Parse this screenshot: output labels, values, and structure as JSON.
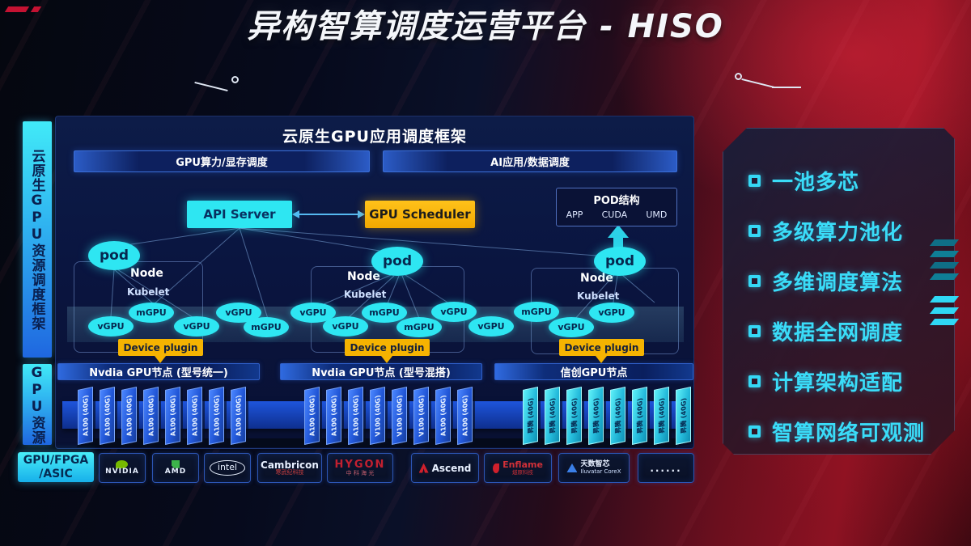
{
  "title": {
    "text": "异构智算调度运营平台 - HISO"
  },
  "sidebar": {
    "top_label": "云原生GPU资源调度框架",
    "bottom_label": "GPU资源"
  },
  "framework": {
    "title": "云原生GPU应用调度框架",
    "left_bar": "GPU算力/显存调度",
    "right_bar": "AI应用/数据调度"
  },
  "control": {
    "api_server": "API Server",
    "gpu_scheduler": "GPU Scheduler"
  },
  "pod_structure": {
    "title": "POD结构",
    "items": [
      "APP",
      "CUDA",
      "UMD"
    ]
  },
  "clusters": [
    {
      "pod": "pod",
      "node_label": "Node",
      "kubelet_label": "Kubelet",
      "device_plugin": "Device plugin"
    },
    {
      "pod": "pod",
      "node_label": "Node",
      "kubelet_label": "Kubelet",
      "device_plugin": "Device plugin"
    },
    {
      "pod": "pod",
      "node_label": "Node",
      "kubelet_label": "Kubelet",
      "device_plugin": "Device plugin"
    }
  ],
  "gpu_units": [
    "vGPU",
    "mGPU",
    "vGPU",
    "vGPU",
    "mGPU",
    "vGPU",
    "vGPU",
    "mGPU",
    "mGPU",
    "vGPU",
    "vGPU",
    "mGPU",
    "vGPU",
    "vGPU"
  ],
  "node_groups": [
    {
      "header": "Nvdia GPU节点 (型号统一)",
      "style": "blue",
      "cards": [
        "A100 (40G)",
        "A100 (40G)",
        "A100 (40G)",
        "A100 (40G)",
        "A100 (40G)",
        "A100 (40G)",
        "A100 (40G)",
        "A100 (40G)"
      ]
    },
    {
      "header": "Nvdia GPU节点 (型号混搭)",
      "style": "blue",
      "cards": [
        "A100 (40G)",
        "A100 (40G)",
        "A100 (40G)",
        "V100 (40G)",
        "V100 (40G)",
        "V100 (40G)",
        "A100 (40G)",
        "A100 (40G)"
      ]
    },
    {
      "header": "信创GPU节点",
      "style": "cyan",
      "cards": [
        "昇腾 (40G)",
        "昇腾 (40G)",
        "昇腾 (40G)",
        "昇腾 (40G)",
        "昇腾 (40G)",
        "昇腾 (40G)",
        "昇腾 (40G)",
        "昇腾 (40G)"
      ]
    }
  ],
  "vendor_bar": {
    "label_line1": "GPU/FPGA",
    "label_line2": "/ASIC",
    "vendors": [
      {
        "name": "NVIDIA",
        "text": "NVIDIA"
      },
      {
        "name": "AMD",
        "text": "AMD"
      },
      {
        "name": "Intel",
        "text": "intel"
      },
      {
        "name": "Cambricon",
        "text": "Cambricon",
        "subtext": "寒武纪科技"
      },
      {
        "name": "HYGON",
        "text": "HYGON",
        "subtext": "中 科 海 光"
      },
      {
        "name": "Ascend",
        "text": "Ascend"
      },
      {
        "name": "Enflame",
        "text": "Enflame",
        "subtext": "燧原科技"
      },
      {
        "name": "Iluvatar",
        "text": "天数智芯",
        "subtext": "Iluvatar CoreX"
      },
      {
        "name": "more",
        "text": "......"
      }
    ]
  },
  "features": [
    "一池多芯",
    "多级算力池化",
    "多维调度算法",
    "数据全网调度",
    "计算架构适配",
    "智算网络可观测"
  ],
  "colors": {
    "cyan": "#2ee6f2",
    "yellow": "#f5b301",
    "card_blue": "#2257d8",
    "panel_blue": "#0a1540",
    "accent_red": "#8d1222"
  }
}
